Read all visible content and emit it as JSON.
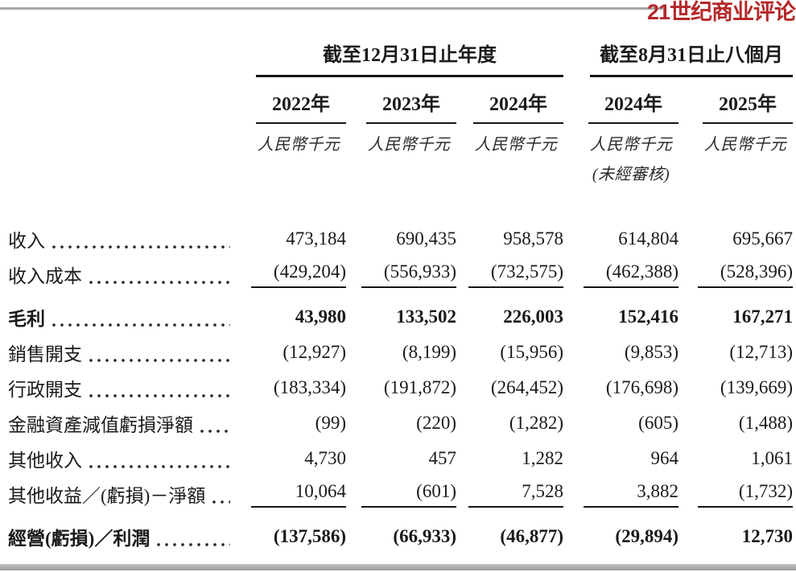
{
  "brand": {
    "logo_text": "21世纪商业评论",
    "logo_color": "#b5282a"
  },
  "colors": {
    "text": "#1a1a1a",
    "rule_gray": "#a6a6a6",
    "bottom_bar_gray": "#9a9a9a"
  },
  "table": {
    "col_groups": [
      {
        "title": "截至12月31日止年度",
        "span": 3
      },
      {
        "title": "截至8月31日止八個月",
        "span": 2
      }
    ],
    "columns": [
      {
        "year": "2022年",
        "unit": "人民幣千元",
        "note": ""
      },
      {
        "year": "2023年",
        "unit": "人民幣千元",
        "note": ""
      },
      {
        "year": "2024年",
        "unit": "人民幣千元",
        "note": ""
      },
      {
        "year": "2024年",
        "unit": "人民幣千元",
        "note": "(未經審核)"
      },
      {
        "year": "2025年",
        "unit": "人民幣千元",
        "note": ""
      }
    ],
    "rows": [
      {
        "label": "收入",
        "values": [
          "473,184",
          "690,435",
          "958,578",
          "614,804",
          "695,667"
        ],
        "bold": false,
        "underline": false,
        "gap_before": false
      },
      {
        "label": "收入成本",
        "values": [
          "(429,204)",
          "(556,933)",
          "(732,575)",
          "(462,388)",
          "(528,396)"
        ],
        "bold": false,
        "underline": true,
        "gap_before": false
      },
      {
        "label": "毛利",
        "values": [
          "43,980",
          "133,502",
          "226,003",
          "152,416",
          "167,271"
        ],
        "bold": true,
        "underline": false,
        "gap_before": true
      },
      {
        "label": "銷售開支",
        "values": [
          "(12,927)",
          "(8,199)",
          "(15,956)",
          "(9,853)",
          "(12,713)"
        ],
        "bold": false,
        "underline": false,
        "gap_before": false
      },
      {
        "label": "行政開支",
        "values": [
          "(183,334)",
          "(191,872)",
          "(264,452)",
          "(176,698)",
          "(139,669)"
        ],
        "bold": false,
        "underline": false,
        "gap_before": false
      },
      {
        "label": "金融資產減值虧損淨額",
        "values": [
          "(99)",
          "(220)",
          "(1,282)",
          "(605)",
          "(1,488)"
        ],
        "bold": false,
        "underline": false,
        "gap_before": false
      },
      {
        "label": "其他收入",
        "values": [
          "4,730",
          "457",
          "1,282",
          "964",
          "1,061"
        ],
        "bold": false,
        "underline": false,
        "gap_before": false
      },
      {
        "label": "其他收益／(虧損)－淨額",
        "values": [
          "10,064",
          "(601)",
          "7,528",
          "3,882",
          "(1,732)"
        ],
        "bold": false,
        "underline": true,
        "gap_before": false
      },
      {
        "label": "經營(虧損)／利潤",
        "values": [
          "(137,586)",
          "(66,933)",
          "(46,877)",
          "(29,894)",
          "12,730"
        ],
        "bold": true,
        "underline": false,
        "gap_before": true
      }
    ]
  }
}
